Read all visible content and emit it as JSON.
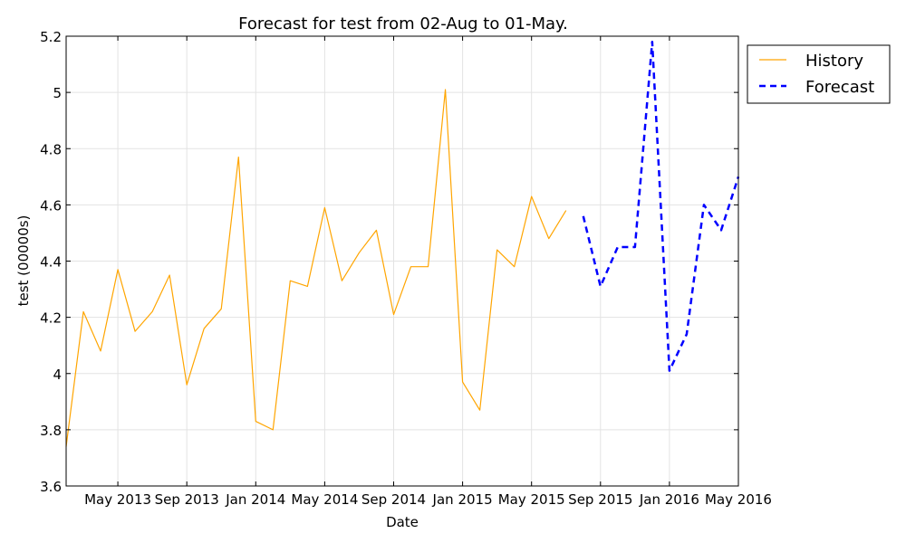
{
  "chart_data": {
    "type": "line",
    "title": "Forecast for test from 02-Aug to 01-May.",
    "xlabel": "Date",
    "ylabel": "test (00000s)",
    "xlim": [
      "2013-02-01",
      "2016-05-01"
    ],
    "ylim": [
      3.6,
      5.2
    ],
    "grid": true,
    "legend_position": "outside-top-right",
    "x_ticks": [
      {
        "date": "2013-05-01",
        "label": "May 2013"
      },
      {
        "date": "2013-09-01",
        "label": "Sep 2013"
      },
      {
        "date": "2014-01-01",
        "label": "Jan 2014"
      },
      {
        "date": "2014-05-01",
        "label": "May 2014"
      },
      {
        "date": "2014-09-01",
        "label": "Sep 2014"
      },
      {
        "date": "2015-01-01",
        "label": "Jan 2015"
      },
      {
        "date": "2015-05-01",
        "label": "May 2015"
      },
      {
        "date": "2015-09-01",
        "label": "Sep 2015"
      },
      {
        "date": "2016-01-01",
        "label": "Jan 2016"
      },
      {
        "date": "2016-05-01",
        "label": "May 2016"
      }
    ],
    "y_ticks": [
      {
        "value": 3.6,
        "label": "3.6"
      },
      {
        "value": 3.8,
        "label": "3.8"
      },
      {
        "value": 4.0,
        "label": "4"
      },
      {
        "value": 4.2,
        "label": "4.2"
      },
      {
        "value": 4.4,
        "label": "4.4"
      },
      {
        "value": 4.6,
        "label": "4.6"
      },
      {
        "value": 4.8,
        "label": "4.8"
      },
      {
        "value": 5.0,
        "label": "5"
      },
      {
        "value": 5.2,
        "label": "5.2"
      }
    ],
    "series": [
      {
        "name": "History",
        "color": "#ffa500",
        "style": "solid",
        "points": [
          {
            "x": "2013-02-01",
            "y": 3.74
          },
          {
            "x": "2013-03-01",
            "y": 4.22
          },
          {
            "x": "2013-04-01",
            "y": 4.08
          },
          {
            "x": "2013-05-01",
            "y": 4.37
          },
          {
            "x": "2013-06-01",
            "y": 4.15
          },
          {
            "x": "2013-07-01",
            "y": 4.22
          },
          {
            "x": "2013-08-01",
            "y": 4.35
          },
          {
            "x": "2013-09-01",
            "y": 3.96
          },
          {
            "x": "2013-10-01",
            "y": 4.16
          },
          {
            "x": "2013-11-01",
            "y": 4.23
          },
          {
            "x": "2013-12-01",
            "y": 4.77
          },
          {
            "x": "2014-01-01",
            "y": 3.83
          },
          {
            "x": "2014-02-01",
            "y": 3.8
          },
          {
            "x": "2014-03-01",
            "y": 4.33
          },
          {
            "x": "2014-04-01",
            "y": 4.31
          },
          {
            "x": "2014-05-01",
            "y": 4.59
          },
          {
            "x": "2014-06-01",
            "y": 4.33
          },
          {
            "x": "2014-07-01",
            "y": 4.43
          },
          {
            "x": "2014-08-01",
            "y": 4.51
          },
          {
            "x": "2014-09-01",
            "y": 4.21
          },
          {
            "x": "2014-10-01",
            "y": 4.38
          },
          {
            "x": "2014-11-01",
            "y": 4.38
          },
          {
            "x": "2014-12-01",
            "y": 5.01
          },
          {
            "x": "2015-01-01",
            "y": 3.97
          },
          {
            "x": "2015-02-01",
            "y": 3.87
          },
          {
            "x": "2015-03-01",
            "y": 4.44
          },
          {
            "x": "2015-04-01",
            "y": 4.38
          },
          {
            "x": "2015-05-01",
            "y": 4.63
          },
          {
            "x": "2015-06-01",
            "y": 4.48
          },
          {
            "x": "2015-07-01",
            "y": 4.58
          }
        ]
      },
      {
        "name": "Forecast",
        "color": "#0000ff",
        "style": "dashed",
        "points": [
          {
            "x": "2015-08-01",
            "y": 4.56
          },
          {
            "x": "2015-09-01",
            "y": 4.31
          },
          {
            "x": "2015-10-01",
            "y": 4.45
          },
          {
            "x": "2015-11-01",
            "y": 4.45
          },
          {
            "x": "2015-12-01",
            "y": 5.18
          },
          {
            "x": "2016-01-01",
            "y": 4.01
          },
          {
            "x": "2016-02-01",
            "y": 4.14
          },
          {
            "x": "2016-03-01",
            "y": 4.6
          },
          {
            "x": "2016-04-01",
            "y": 4.51
          },
          {
            "x": "2016-05-01",
            "y": 4.7
          }
        ]
      }
    ]
  }
}
